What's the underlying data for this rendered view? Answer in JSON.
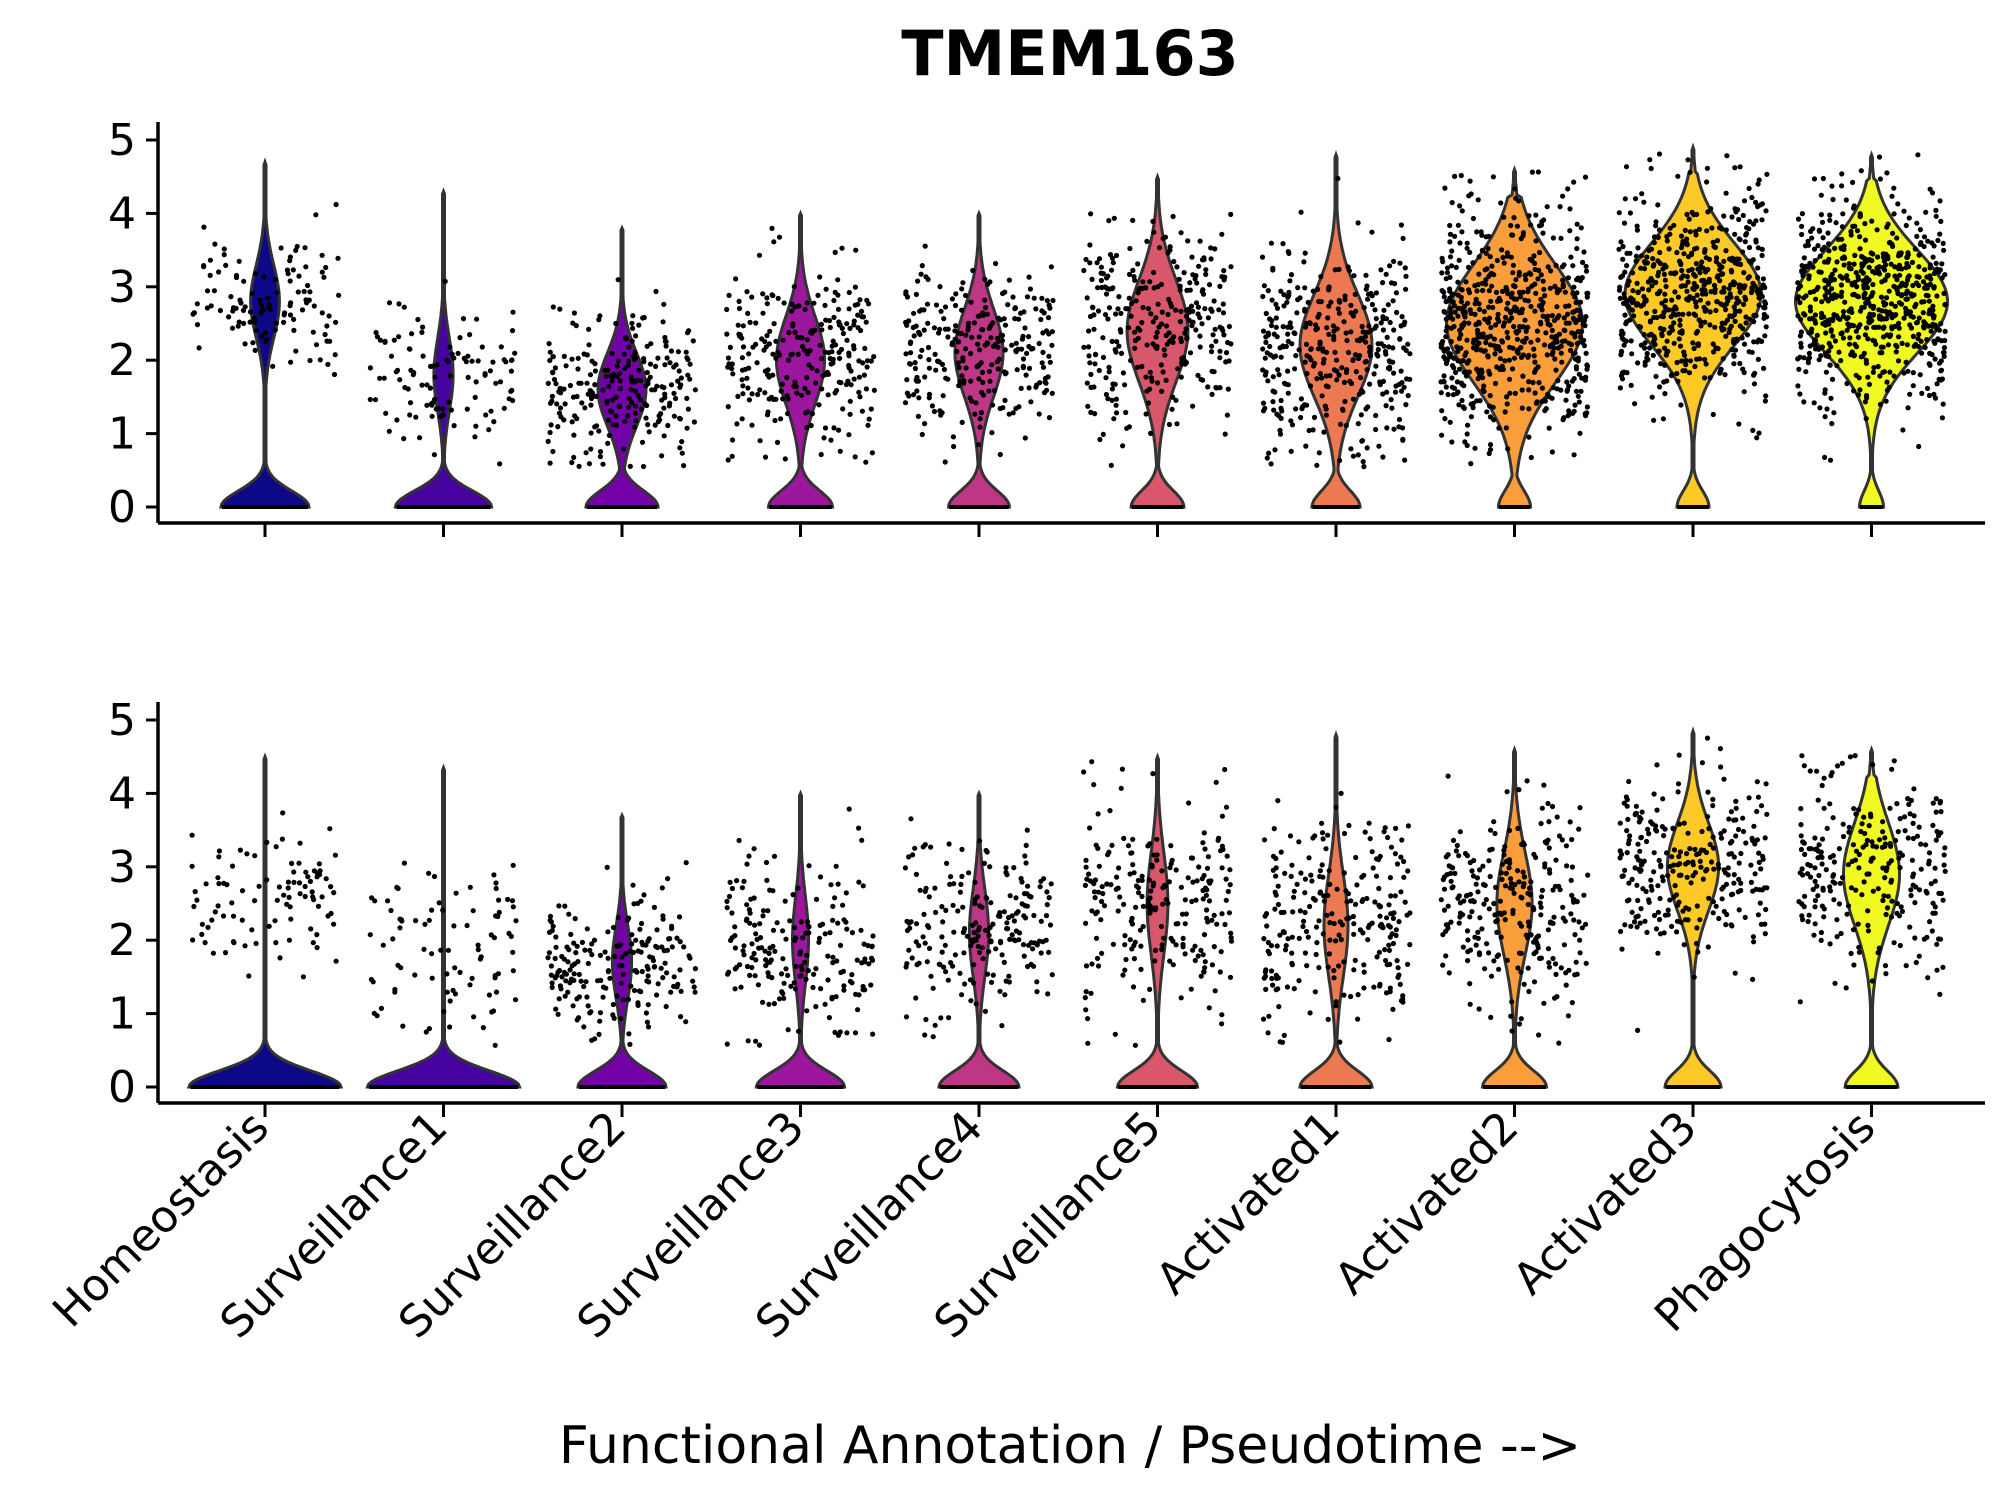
{
  "chart_data": {
    "type": "violin",
    "title": "TMEM163",
    "xlabel": "Functional Annotation / Pseudotime -->",
    "ylabel": "",
    "ylim": [
      0,
      5.2
    ],
    "yticks": [
      "0",
      "1",
      "2",
      "3",
      "4",
      "5"
    ],
    "grid": false,
    "categories": [
      "Homeostasis",
      "Surveillance1",
      "Surveillance2",
      "Surveillance3",
      "Surveillance4",
      "Surveillance5",
      "Activated1",
      "Activated2",
      "Activated3",
      "Phagocytosis"
    ],
    "colors": [
      "#0d0887",
      "#47039f",
      "#7301a8",
      "#9c179e",
      "#bd3786",
      "#d8576b",
      "#ed7953",
      "#fa9e3b",
      "#fdc926",
      "#f0f921"
    ],
    "panels": [
      {
        "violins": [
          {
            "max": 4.7,
            "zero_fraction": 0.55,
            "upper_center": 2.8,
            "upper_spread": 0.5,
            "upper_width": 0.18,
            "n_points": 120
          },
          {
            "max": 4.3,
            "zero_fraction": 0.6,
            "upper_center": 1.8,
            "upper_spread": 0.5,
            "upper_width": 0.12,
            "n_points": 110
          },
          {
            "max": 3.8,
            "zero_fraction": 0.45,
            "upper_center": 1.6,
            "upper_spread": 0.5,
            "upper_width": 0.3,
            "n_points": 240
          },
          {
            "max": 4.0,
            "zero_fraction": 0.4,
            "upper_center": 2.0,
            "upper_spread": 0.6,
            "upper_width": 0.3,
            "n_points": 260
          },
          {
            "max": 4.0,
            "zero_fraction": 0.38,
            "upper_center": 2.1,
            "upper_spread": 0.6,
            "upper_width": 0.3,
            "n_points": 270
          },
          {
            "max": 4.5,
            "zero_fraction": 0.33,
            "upper_center": 2.4,
            "upper_spread": 0.7,
            "upper_width": 0.38,
            "n_points": 300
          },
          {
            "max": 4.8,
            "zero_fraction": 0.3,
            "upper_center": 2.2,
            "upper_spread": 0.7,
            "upper_width": 0.45,
            "n_points": 360
          },
          {
            "max": 4.6,
            "zero_fraction": 0.2,
            "upper_center": 2.5,
            "upper_spread": 0.8,
            "upper_width": 0.85,
            "n_points": 620
          },
          {
            "max": 4.9,
            "zero_fraction": 0.2,
            "upper_center": 2.9,
            "upper_spread": 0.7,
            "upper_width": 0.85,
            "n_points": 560
          },
          {
            "max": 4.8,
            "zero_fraction": 0.15,
            "upper_center": 2.8,
            "upper_spread": 0.7,
            "upper_width": 0.95,
            "n_points": 640
          }
        ]
      },
      {
        "violins": [
          {
            "max": 4.5,
            "zero_fraction": 0.95,
            "upper_center": 2.7,
            "upper_spread": 0.5,
            "upper_width": 0.0,
            "n_points": 95
          },
          {
            "max": 4.35,
            "zero_fraction": 0.95,
            "upper_center": 1.9,
            "upper_spread": 0.6,
            "upper_width": 0.0,
            "n_points": 90
          },
          {
            "max": 3.7,
            "zero_fraction": 0.55,
            "upper_center": 1.7,
            "upper_spread": 0.5,
            "upper_width": 0.12,
            "n_points": 200
          },
          {
            "max": 4.0,
            "zero_fraction": 0.55,
            "upper_center": 2.0,
            "upper_spread": 0.6,
            "upper_width": 0.1,
            "n_points": 200
          },
          {
            "max": 4.0,
            "zero_fraction": 0.5,
            "upper_center": 2.1,
            "upper_spread": 0.6,
            "upper_width": 0.12,
            "n_points": 210
          },
          {
            "max": 4.5,
            "zero_fraction": 0.5,
            "upper_center": 2.5,
            "upper_spread": 0.7,
            "upper_width": 0.13,
            "n_points": 230
          },
          {
            "max": 4.8,
            "zero_fraction": 0.45,
            "upper_center": 2.2,
            "upper_spread": 0.7,
            "upper_width": 0.15,
            "n_points": 250
          },
          {
            "max": 4.6,
            "zero_fraction": 0.4,
            "upper_center": 2.5,
            "upper_spread": 0.7,
            "upper_width": 0.22,
            "n_points": 270
          },
          {
            "max": 4.85,
            "zero_fraction": 0.35,
            "upper_center": 3.0,
            "upper_spread": 0.6,
            "upper_width": 0.32,
            "n_points": 270
          },
          {
            "max": 4.6,
            "zero_fraction": 0.33,
            "upper_center": 2.9,
            "upper_spread": 0.7,
            "upper_width": 0.35,
            "n_points": 260
          }
        ]
      }
    ]
  }
}
